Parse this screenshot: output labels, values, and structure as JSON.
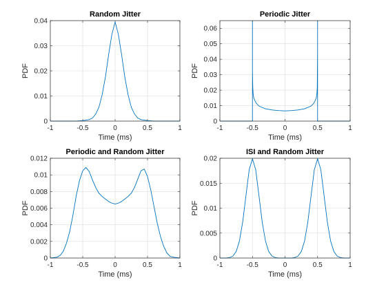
{
  "figure": {
    "background": "#ffffff",
    "line_color": "#0072bd",
    "grid_color": "#dcdcdc",
    "axis_color": "#262626"
  },
  "chart_data": [
    {
      "type": "line",
      "title": "Random Jitter",
      "xlabel": "Time (ms)",
      "ylabel": "PDF",
      "xlim": [
        -1,
        1
      ],
      "ylim": [
        0,
        0.04
      ],
      "xticks": [
        "-1",
        "-0.5",
        "0",
        "0.5",
        "1"
      ],
      "yticks": [
        "0",
        "0.01",
        "0.02",
        "0.03",
        "0.04"
      ],
      "grid": true,
      "series": [
        {
          "x": [
            -1,
            -0.6,
            -0.5,
            -0.4,
            -0.35,
            -0.3,
            -0.25,
            -0.2,
            -0.15,
            -0.1,
            -0.05,
            0,
            0.05,
            0.1,
            0.15,
            0.2,
            0.25,
            0.3,
            0.35,
            0.4,
            0.5,
            0.6,
            1
          ],
          "y": [
            0,
            0,
            0.0002,
            0.0006,
            0.0012,
            0.0028,
            0.0055,
            0.0105,
            0.0175,
            0.0265,
            0.0345,
            0.0395,
            0.0345,
            0.0265,
            0.0175,
            0.0105,
            0.0055,
            0.0028,
            0.0012,
            0.0006,
            0.0002,
            0,
            0
          ]
        }
      ]
    },
    {
      "type": "line",
      "title": "Periodic Jitter",
      "xlabel": "Time (ms)",
      "ylabel": "PDF",
      "xlim": [
        -1,
        1
      ],
      "ylim": [
        0,
        0.065
      ],
      "xticks": [
        "-1",
        "-0.5",
        "0",
        "0.5",
        "1"
      ],
      "yticks": [
        "0",
        "0.01",
        "0.02",
        "0.03",
        "0.04",
        "0.05",
        "0.06"
      ],
      "grid": true,
      "series": [
        {
          "x": [
            -1,
            -0.5,
            -0.5,
            -0.5,
            -0.5,
            -0.495,
            -0.49,
            -0.48,
            -0.46,
            -0.44,
            -0.4,
            -0.35,
            -0.3,
            -0.2,
            -0.1,
            0,
            0.1,
            0.2,
            0.3,
            0.35,
            0.4,
            0.44,
            0.46,
            0.48,
            0.49,
            0.495,
            0.5,
            0.5,
            0.5,
            0.5,
            1
          ],
          "y": [
            0,
            0,
            0.065,
            0,
            0.032,
            0.022,
            0.018,
            0.015,
            0.013,
            0.0115,
            0.0098,
            0.0088,
            0.008,
            0.0072,
            0.0068,
            0.0066,
            0.0068,
            0.0072,
            0.008,
            0.0088,
            0.0098,
            0.0115,
            0.013,
            0.015,
            0.018,
            0.022,
            0.045,
            0,
            0.065,
            0,
            0
          ]
        }
      ]
    },
    {
      "type": "line",
      "title": "Periodic and Random Jitter",
      "xlabel": "Time (ms)",
      "ylabel": "PDF",
      "xlim": [
        -1,
        1
      ],
      "ylim": [
        0,
        0.012
      ],
      "xticks": [
        "-1",
        "-0.5",
        "0",
        "0.5",
        "1"
      ],
      "yticks": [
        "0",
        "0.002",
        "0.004",
        "0.006",
        "0.008",
        "0.01",
        "0.012"
      ],
      "grid": true,
      "series": [
        {
          "x": [
            -1,
            -0.9,
            -0.85,
            -0.8,
            -0.75,
            -0.7,
            -0.65,
            -0.6,
            -0.55,
            -0.5,
            -0.45,
            -0.4,
            -0.35,
            -0.3,
            -0.25,
            -0.2,
            -0.15,
            -0.1,
            -0.05,
            0,
            0.05,
            0.1,
            0.15,
            0.2,
            0.25,
            0.3,
            0.35,
            0.4,
            0.45,
            0.5,
            0.55,
            0.6,
            0.65,
            0.7,
            0.75,
            0.8,
            0.85,
            0.9,
            1
          ],
          "y": [
            0,
            0.0001,
            0.0003,
            0.0008,
            0.0018,
            0.0032,
            0.0052,
            0.0075,
            0.0093,
            0.0105,
            0.0109,
            0.0104,
            0.0094,
            0.0085,
            0.0078,
            0.0074,
            0.0071,
            0.0068,
            0.0066,
            0.0065,
            0.0066,
            0.0068,
            0.0071,
            0.0074,
            0.0078,
            0.0085,
            0.0095,
            0.0105,
            0.0107,
            0.0098,
            0.0082,
            0.0062,
            0.0042,
            0.0026,
            0.0014,
            0.0006,
            0.0002,
            0.0001,
            0
          ]
        }
      ]
    },
    {
      "type": "line",
      "title": "ISI and Random Jitter",
      "xlabel": "Time (ms)",
      "ylabel": "PDF",
      "xlim": [
        -1,
        1
      ],
      "ylim": [
        0,
        0.02
      ],
      "xticks": [
        "-1",
        "-0.5",
        "0",
        "0.5",
        "1"
      ],
      "yticks": [
        "0",
        "0.005",
        "0.01",
        "0.015",
        "0.02"
      ],
      "grid": true,
      "series": [
        {
          "x": [
            -1,
            -0.9,
            -0.85,
            -0.8,
            -0.75,
            -0.7,
            -0.65,
            -0.6,
            -0.55,
            -0.5,
            -0.45,
            -0.4,
            -0.35,
            -0.3,
            -0.25,
            -0.2,
            -0.15,
            -0.1,
            0,
            0.1,
            0.15,
            0.2,
            0.25,
            0.3,
            0.35,
            0.4,
            0.45,
            0.5,
            0.55,
            0.6,
            0.65,
            0.7,
            0.75,
            0.8,
            0.85,
            0.9,
            1
          ],
          "y": [
            0,
            0,
            0.0001,
            0.0004,
            0.0013,
            0.0034,
            0.0072,
            0.0125,
            0.0177,
            0.0199,
            0.0177,
            0.0125,
            0.0072,
            0.0034,
            0.0013,
            0.0004,
            0.0001,
            0,
            0,
            0,
            0.0001,
            0.0004,
            0.0013,
            0.0034,
            0.0072,
            0.0125,
            0.0177,
            0.0199,
            0.0177,
            0.0125,
            0.0072,
            0.0034,
            0.0013,
            0.0004,
            0.0001,
            0,
            0
          ]
        }
      ]
    }
  ]
}
